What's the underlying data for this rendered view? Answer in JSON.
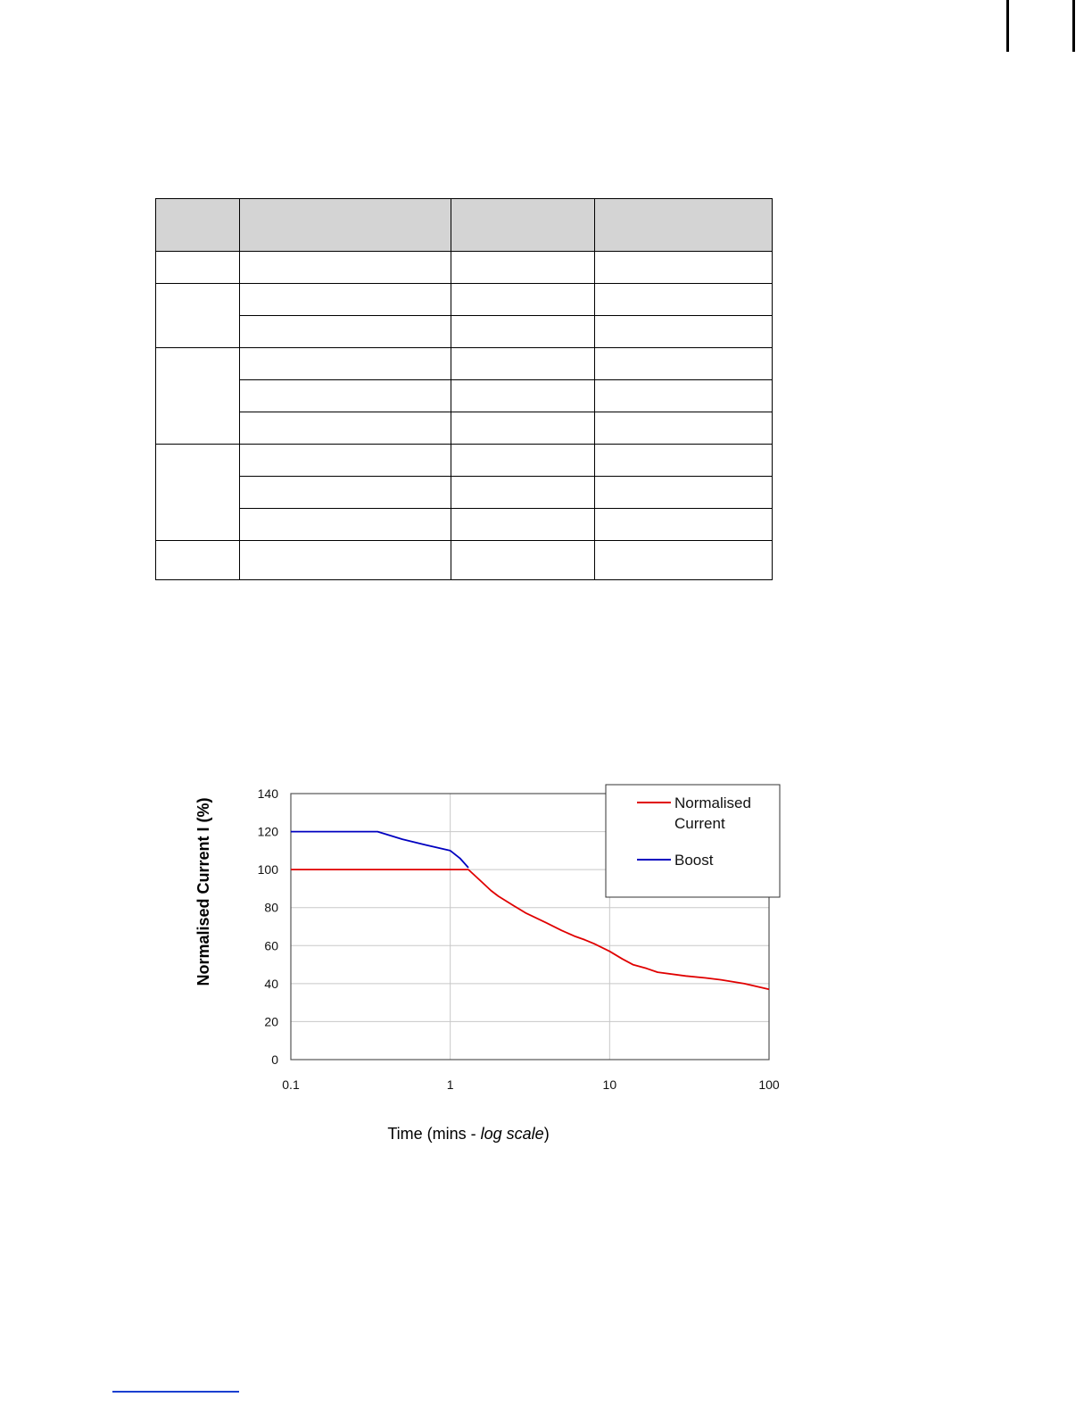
{
  "table": {
    "rows": 10
  },
  "chart_data": {
    "type": "line",
    "x_scale": "log",
    "xlim": [
      0.1,
      100
    ],
    "ylim": [
      0,
      140
    ],
    "x_ticks": [
      "0.1",
      "1",
      "10",
      "100"
    ],
    "y_ticks": [
      "0",
      "20",
      "40",
      "60",
      "80",
      "100",
      "120",
      "140"
    ],
    "xlabel_main": "Time (mins - ",
    "xlabel_italic": "log scale",
    "xlabel_close": ")",
    "ylabel": "Normalised Current I (%)",
    "grid": true,
    "legend_position": "top-right",
    "series": [
      {
        "name": "Normalised Current",
        "color": "#e00000",
        "points": [
          [
            0.1,
            100
          ],
          [
            0.5,
            100
          ],
          [
            1.0,
            100
          ],
          [
            1.3,
            100
          ],
          [
            1.6,
            93
          ],
          [
            1.8,
            89
          ],
          [
            2.0,
            86
          ],
          [
            2.5,
            81
          ],
          [
            3.0,
            77
          ],
          [
            4.0,
            72
          ],
          [
            5.0,
            68
          ],
          [
            6.0,
            65
          ],
          [
            7.0,
            63
          ],
          [
            8.0,
            61
          ],
          [
            10.0,
            57
          ],
          [
            12.0,
            53
          ],
          [
            14.0,
            50
          ],
          [
            17.0,
            48
          ],
          [
            20.0,
            46
          ],
          [
            30.0,
            44
          ],
          [
            40.0,
            43
          ],
          [
            50.0,
            42
          ],
          [
            70.0,
            40
          ],
          [
            100.0,
            37
          ]
        ]
      },
      {
        "name": "Boost",
        "color": "#0000c0",
        "points": [
          [
            0.1,
            120
          ],
          [
            0.3,
            120
          ],
          [
            0.35,
            120
          ],
          [
            0.5,
            116
          ],
          [
            0.7,
            113
          ],
          [
            1.0,
            110
          ],
          [
            1.15,
            106
          ],
          [
            1.3,
            101
          ]
        ]
      }
    ]
  },
  "legend": {
    "items": [
      {
        "line1": "Normalised",
        "line2": "Current",
        "color": "#e00000"
      },
      {
        "line1": "Boost",
        "line2": "",
        "color": "#0000c0"
      }
    ]
  }
}
